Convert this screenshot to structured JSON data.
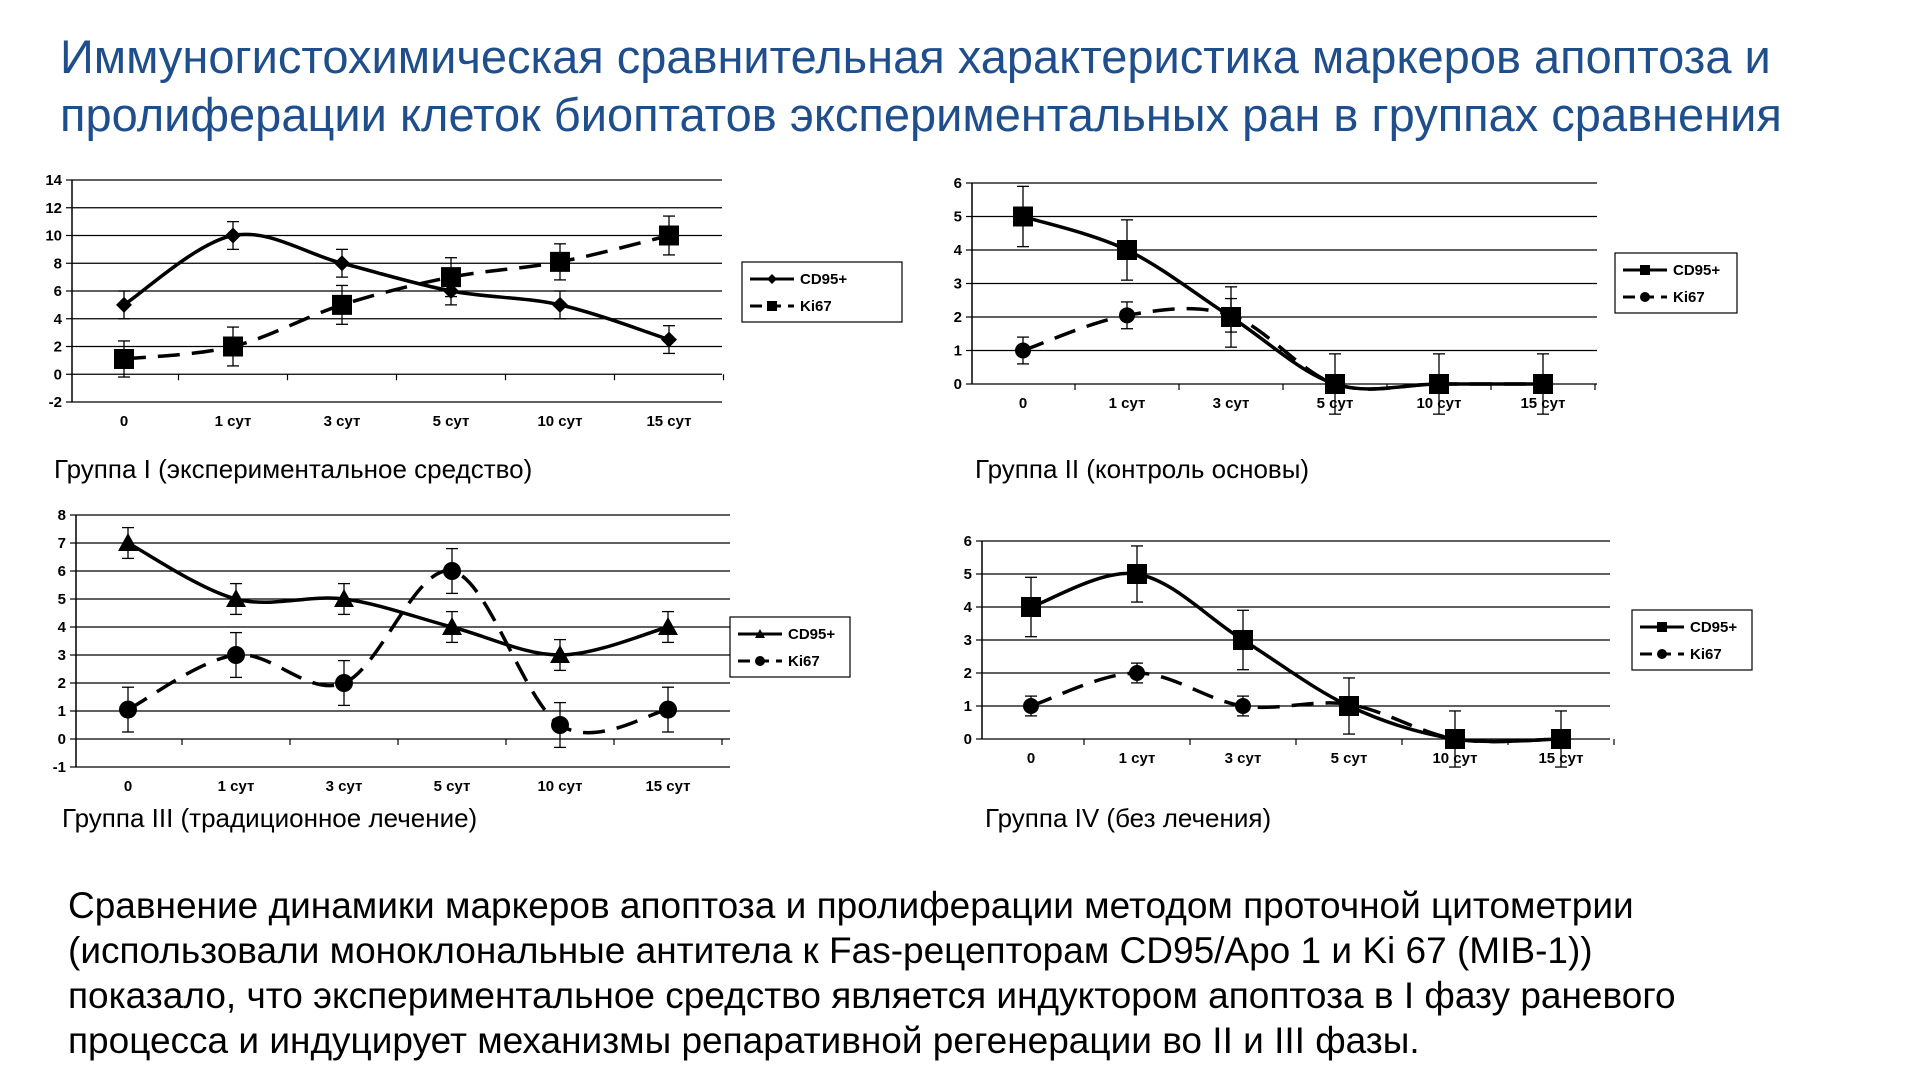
{
  "title": {
    "line1": "Иммуногистохимическая сравнительная характеристика маркеров апоптоза и",
    "line2": "пролиферации клеток биоптатов экспериментальных ран в группах сравнения"
  },
  "captions": [
    "Группа I (экспериментальное средство)",
    "Группа II (контроль основы)",
    "Группа III (традиционное лечение)",
    "Группа IV (без лечения)"
  ],
  "summary": {
    "line1": "Сравнение динамики маркеров апоптоза и пролиферации методом проточной цитометрии",
    "line2": "(использовали моноклональные антитела к Fas-рецепторам CD95/Apo 1 и Ki 67 (MIB-1))",
    "line3": "показало, что экспериментальное средство является индуктором апоптоза в I фазу раневого",
    "line4": "процесса и индуцирует механизмы репаративной регенерации во II и III фазы."
  },
  "colors": {
    "title": "#1f4e8c",
    "ink": "#000000"
  },
  "chart_data": [
    {
      "type": "line",
      "categories": [
        "0",
        "1 сут",
        "3 сут",
        "5 сут",
        "10 сут",
        "15 сут"
      ],
      "ylim": [
        -2,
        14
      ],
      "yticks": [
        -2,
        0,
        2,
        4,
        6,
        8,
        10,
        12,
        14
      ],
      "grid": true,
      "legend_position": "right",
      "series": [
        {
          "name": "CD95+",
          "values": [
            5,
            10,
            8,
            6,
            5,
            2.5
          ],
          "errors": [
            1,
            1,
            1,
            1,
            1,
            1
          ],
          "marker": "diamond",
          "dash": false
        },
        {
          "name": "Ki67",
          "values": [
            1.1,
            2,
            5,
            7,
            8.1,
            10
          ],
          "errors": [
            1.3,
            1.4,
            1.4,
            1.4,
            1.3,
            1.4
          ],
          "marker": "square",
          "dash": true
        }
      ]
    },
    {
      "type": "line",
      "categories": [
        "0",
        "1 сут",
        "3 сут",
        "5 сут",
        "10 сут",
        "15 сут"
      ],
      "ylim": [
        0,
        6
      ],
      "yticks": [
        0,
        1,
        2,
        3,
        4,
        5,
        6
      ],
      "grid": true,
      "legend_position": "right",
      "series": [
        {
          "name": "CD95+",
          "values": [
            5,
            4,
            2,
            0,
            0,
            0
          ],
          "errors": [
            0.9,
            0.9,
            0.9,
            0.9,
            0.9,
            0.9
          ],
          "marker": "square",
          "dash": false
        },
        {
          "name": "Ki67",
          "values": [
            1,
            2.05,
            2.05,
            0,
            0,
            0
          ],
          "errors": [
            0.4,
            0.4,
            0.5,
            0,
            0,
            0
          ],
          "marker": "circle",
          "dash": true
        }
      ]
    },
    {
      "type": "line",
      "categories": [
        "0",
        "1 сут",
        "3 сут",
        "5 сут",
        "10 сут",
        "15 сут"
      ],
      "ylim": [
        -1,
        8
      ],
      "yticks": [
        -1,
        0,
        1,
        2,
        3,
        4,
        5,
        6,
        7,
        8
      ],
      "grid": true,
      "legend_position": "right",
      "series": [
        {
          "name": "CD95+",
          "values": [
            7,
            5,
            5,
            4,
            3,
            4
          ],
          "errors": [
            0.55,
            0.55,
            0.55,
            0.55,
            0.55,
            0.55
          ],
          "marker": "triangle",
          "dash": false
        },
        {
          "name": "Ki67",
          "values": [
            1.05,
            3,
            2,
            6,
            0.5,
            1.05
          ],
          "errors": [
            0.8,
            0.8,
            0.8,
            0.8,
            0.8,
            0.8
          ],
          "marker": "circle",
          "dash": true
        }
      ]
    },
    {
      "type": "line",
      "categories": [
        "0",
        "1 сут",
        "3 сут",
        "5 сут",
        "10 сут",
        "15 сут"
      ],
      "ylim": [
        0,
        6
      ],
      "yticks": [
        0,
        1,
        2,
        3,
        4,
        5,
        6
      ],
      "grid": true,
      "legend_position": "right",
      "series": [
        {
          "name": "CD95+",
          "values": [
            4,
            5,
            3,
            1,
            0,
            0
          ],
          "errors": [
            0.9,
            0.85,
            0.9,
            0.85,
            0.85,
            0.85
          ],
          "marker": "square",
          "dash": false
        },
        {
          "name": "Ki67",
          "values": [
            1,
            2,
            1,
            1.05,
            0,
            0
          ],
          "errors": [
            0.3,
            0.3,
            0.3,
            0,
            0,
            0
          ],
          "marker": "circle",
          "dash": true
        }
      ]
    }
  ]
}
